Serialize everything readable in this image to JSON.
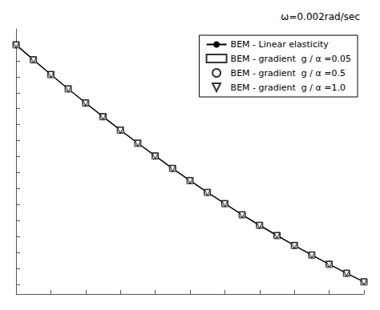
{
  "chart_data": {
    "type": "line",
    "annotation": "ω=0.002rad/sec",
    "x": [
      1.0,
      1.1,
      1.2,
      1.3,
      1.4,
      1.5,
      1.6,
      1.7,
      1.8,
      1.9,
      2.0,
      2.1,
      2.2,
      2.3,
      2.4,
      2.5,
      2.6,
      2.7,
      2.8,
      2.9,
      3.0
    ],
    "series": [
      {
        "name": "BEM - Linear elasticity",
        "type": "line",
        "color": "#000000",
        "line_style": "solid",
        "marker": "none",
        "values": [
          1.0,
          0.953,
          0.907,
          0.862,
          0.818,
          0.775,
          0.733,
          0.692,
          0.652,
          0.613,
          0.575,
          0.538,
          0.503,
          0.468,
          0.435,
          0.403,
          0.372,
          0.342,
          0.313,
          0.285,
          0.258
        ]
      },
      {
        "name": "BEM - gradient  g / α =0.05",
        "type": "scatter",
        "color": "#000000",
        "line_style": "none",
        "marker": "square",
        "values": [
          1.0,
          0.953,
          0.907,
          0.862,
          0.818,
          0.775,
          0.733,
          0.692,
          0.652,
          0.613,
          0.575,
          0.538,
          0.503,
          0.468,
          0.435,
          0.403,
          0.372,
          0.342,
          0.313,
          0.285,
          0.258
        ]
      },
      {
        "name": "BEM - gradient  g / α =0.5",
        "type": "scatter",
        "color": "#000000",
        "line_style": "none",
        "marker": "circle",
        "values": [
          1.0,
          0.953,
          0.907,
          0.862,
          0.818,
          0.775,
          0.733,
          0.692,
          0.652,
          0.613,
          0.575,
          0.538,
          0.503,
          0.468,
          0.435,
          0.403,
          0.372,
          0.342,
          0.313,
          0.285,
          0.258
        ]
      },
      {
        "name": "BEM - gradient  g / α =1.0",
        "type": "scatter",
        "color": "#000000",
        "line_style": "none",
        "marker": "triangle_down",
        "values": [
          1.0,
          0.953,
          0.907,
          0.862,
          0.818,
          0.775,
          0.733,
          0.692,
          0.652,
          0.613,
          0.575,
          0.538,
          0.503,
          0.468,
          0.435,
          0.403,
          0.372,
          0.342,
          0.313,
          0.285,
          0.258
        ]
      }
    ],
    "xlim": [
      1.0,
      3.0
    ],
    "ylim": [
      0.22,
      1.05
    ],
    "xticks": [
      1.0,
      1.2,
      1.4,
      1.6,
      1.8,
      2.0,
      2.2,
      2.4,
      2.6,
      2.8,
      3.0
    ],
    "yticks": [
      0.25,
      0.3,
      0.35,
      0.4,
      0.45,
      0.5,
      0.55,
      0.6,
      0.65,
      0.7,
      0.75,
      0.8,
      0.85,
      0.9,
      0.95,
      1.0
    ],
    "tick_labels": false,
    "grid": false,
    "legend": "upper right"
  }
}
